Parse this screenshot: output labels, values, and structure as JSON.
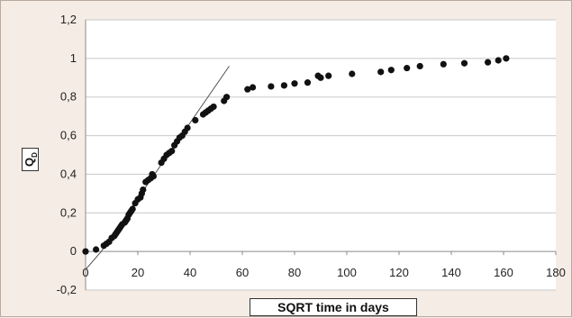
{
  "chart_data": {
    "type": "scatter",
    "xlabel": "SQRT time in days",
    "ylabel": "Q",
    "ylabel_sub": "D",
    "xlim": [
      0,
      180
    ],
    "ylim": [
      -0.2,
      1.2
    ],
    "x_ticks": [
      "0",
      "20",
      "40",
      "60",
      "80",
      "100",
      "120",
      "140",
      "160",
      "180"
    ],
    "y_ticks": [
      "-0,2",
      "0",
      "0,2",
      "0,4",
      "0,6",
      "0,8",
      "1",
      "1,2"
    ],
    "grid": "horizontal",
    "colors": {
      "points": "#111111",
      "background": "#f5ece6",
      "plot_area": "#ffffff",
      "grid": "#c8c8c8"
    },
    "trend_line": {
      "x": [
        6,
        55
      ],
      "y": [
        0,
        0.96
      ]
    },
    "points": [
      [
        0,
        0
      ],
      [
        4,
        0.01
      ],
      [
        7,
        0.03
      ],
      [
        8,
        0.04
      ],
      [
        9,
        0.05
      ],
      [
        10,
        0.07
      ],
      [
        11,
        0.08
      ],
      [
        11.5,
        0.09
      ],
      [
        12,
        0.1
      ],
      [
        12.5,
        0.11
      ],
      [
        13,
        0.12
      ],
      [
        13.5,
        0.13
      ],
      [
        14,
        0.14
      ],
      [
        15,
        0.15
      ],
      [
        15.5,
        0.16
      ],
      [
        16,
        0.17
      ],
      [
        16.5,
        0.19
      ],
      [
        17,
        0.2
      ],
      [
        17.5,
        0.21
      ],
      [
        18,
        0.22
      ],
      [
        19,
        0.25
      ],
      [
        20,
        0.27
      ],
      [
        21,
        0.28
      ],
      [
        21.5,
        0.3
      ],
      [
        22,
        0.32
      ],
      [
        23,
        0.36
      ],
      [
        24,
        0.37
      ],
      [
        25,
        0.38
      ],
      [
        25.5,
        0.4
      ],
      [
        26,
        0.39
      ],
      [
        29,
        0.46
      ],
      [
        30,
        0.48
      ],
      [
        31,
        0.5
      ],
      [
        32,
        0.51
      ],
      [
        33,
        0.52
      ],
      [
        34,
        0.55
      ],
      [
        35,
        0.57
      ],
      [
        36,
        0.59
      ],
      [
        37,
        0.6
      ],
      [
        38,
        0.62
      ],
      [
        39,
        0.64
      ],
      [
        42,
        0.68
      ],
      [
        45,
        0.71
      ],
      [
        46,
        0.72
      ],
      [
        47,
        0.73
      ],
      [
        48,
        0.74
      ],
      [
        49,
        0.75
      ],
      [
        53,
        0.78
      ],
      [
        54,
        0.8
      ],
      [
        62,
        0.84
      ],
      [
        64,
        0.85
      ],
      [
        71,
        0.855
      ],
      [
        76,
        0.86
      ],
      [
        80,
        0.87
      ],
      [
        85,
        0.875
      ],
      [
        89,
        0.91
      ],
      [
        90,
        0.9
      ],
      [
        93,
        0.91
      ],
      [
        102,
        0.92
      ],
      [
        113,
        0.93
      ],
      [
        117,
        0.94
      ],
      [
        123,
        0.95
      ],
      [
        128,
        0.96
      ],
      [
        137,
        0.97
      ],
      [
        145,
        0.975
      ],
      [
        154,
        0.98
      ],
      [
        158,
        0.99
      ],
      [
        161,
        1.0
      ]
    ]
  }
}
